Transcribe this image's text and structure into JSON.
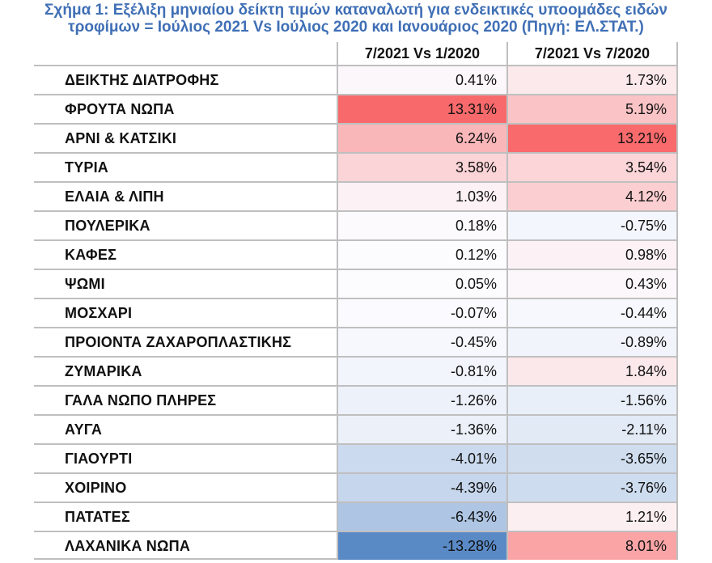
{
  "chart_data": {
    "type": "table",
    "title_line1": "Σχήμα 1: Εξέλιξη μηνιαίου δείκτη τιμών καταναλωτή για ενδεικτικές υποομάδες ειδών",
    "title_line2": "τροφίμων = Ιούλιος 2021 Vs Ιούλιος 2020 και Ιανουάριος 2020 (Πηγή: ΕΛ.ΣΤΑΤ.)",
    "columns": [
      "7/2021 Vs 1/2020",
      "7/2021 Vs 7/2020"
    ],
    "rows": [
      {
        "label": "ΔΕΙΚΤΗΣ ΔΙΑΤΡΟΦΗΣ",
        "values": [
          0.41,
          1.73
        ],
        "display": [
          "0.41%",
          "1.73%"
        ]
      },
      {
        "label": "ΦΡΟΥΤΑ ΝΩΠΑ",
        "values": [
          13.31,
          5.19
        ],
        "display": [
          "13.31%",
          "5.19%"
        ]
      },
      {
        "label": "ΑΡΝΙ & ΚΑΤΣΙΚΙ",
        "values": [
          6.24,
          13.21
        ],
        "display": [
          "6.24%",
          "13.21%"
        ]
      },
      {
        "label": "ΤΥΡΙΑ",
        "values": [
          3.58,
          3.54
        ],
        "display": [
          "3.58%",
          "3.54%"
        ]
      },
      {
        "label": "ΕΛΑΙΑ & ΛΙΠΗ",
        "values": [
          1.03,
          4.12
        ],
        "display": [
          "1.03%",
          "4.12%"
        ]
      },
      {
        "label": "ΠΟΥΛΕΡΙΚΑ",
        "values": [
          0.18,
          -0.75
        ],
        "display": [
          "0.18%",
          "-0.75%"
        ]
      },
      {
        "label": "ΚΑΦΕΣ",
        "values": [
          0.12,
          0.98
        ],
        "display": [
          "0.12%",
          "0.98%"
        ]
      },
      {
        "label": "ΨΩΜΙ",
        "values": [
          0.05,
          0.43
        ],
        "display": [
          "0.05%",
          "0.43%"
        ]
      },
      {
        "label": "ΜΟΣΧΑΡΙ",
        "values": [
          -0.07,
          -0.44
        ],
        "display": [
          "-0.07%",
          "-0.44%"
        ]
      },
      {
        "label": "ΠΡΟΙΟΝΤΑ ΖΑΧΑΡΟΠΛΑΣΤΙΚΗΣ",
        "values": [
          -0.45,
          -0.89
        ],
        "display": [
          "-0.45%",
          "-0.89%"
        ]
      },
      {
        "label": "ΖΥΜΑΡΙΚΑ",
        "values": [
          -0.81,
          1.84
        ],
        "display": [
          "-0.81%",
          "1.84%"
        ]
      },
      {
        "label": "ΓΑΛΑ ΝΩΠΟ ΠΛΗΡΕΣ",
        "values": [
          -1.26,
          -1.56
        ],
        "display": [
          "-1.26%",
          "-1.56%"
        ]
      },
      {
        "label": "ΑΥΓΑ",
        "values": [
          -1.36,
          -2.11
        ],
        "display": [
          "-1.36%",
          "-2.11%"
        ]
      },
      {
        "label": "ΓΙΑΟΥΡΤΙ",
        "values": [
          -4.01,
          -3.65
        ],
        "display": [
          "-4.01%",
          "-3.65%"
        ]
      },
      {
        "label": "ΧΟΙΡΙΝΟ",
        "values": [
          -4.39,
          -3.76
        ],
        "display": [
          "-4.39%",
          "-3.76%"
        ]
      },
      {
        "label": "ΠΑΤΑΤΕΣ",
        "values": [
          -6.43,
          1.21
        ],
        "display": [
          "-6.43%",
          "1.21%"
        ]
      },
      {
        "label": "ΛΑΧΑΝΙΚΑ ΝΩΠΑ",
        "values": [
          -13.28,
          8.01
        ],
        "display": [
          "-13.28%",
          "8.01%"
        ]
      }
    ],
    "colors": {
      "title": "#3f6fb5",
      "positive_max": "#f8696b",
      "negative_max": "#5a8ac6",
      "neutral": "#fcfcff",
      "grid": "#bfbfbf"
    }
  }
}
